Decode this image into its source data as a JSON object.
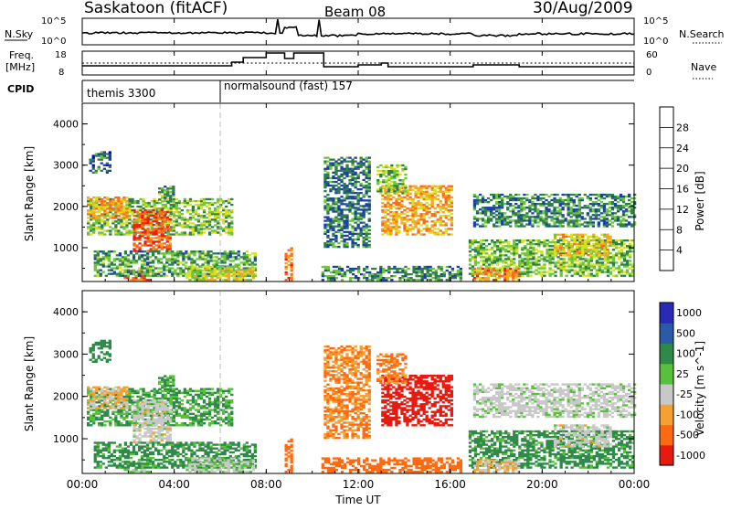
{
  "header": {
    "station": "Saskatoon (fitACF)",
    "beam": "Beam 08",
    "date": "30/Aug/2009"
  },
  "strips": {
    "nsky_label": "N.Sky",
    "nsky_ticks": [
      "10^5",
      "10^0"
    ],
    "nsearch_label": "N.Search",
    "freq_label_1": "Freq.",
    "freq_label_2": "[MHz]",
    "freq_ticks": [
      "18",
      "8"
    ],
    "nave_ticks": [
      "60",
      "0"
    ],
    "nave_label": "Nave",
    "cpid_label": "CPID",
    "cpid_segments": [
      "themis 3300",
      "normalsound (fast) 157"
    ]
  },
  "axes": {
    "time_ticks": [
      "00:00",
      "04:00",
      "08:00",
      "12:00",
      "16:00",
      "20:00",
      "00:00"
    ],
    "time_label": "Time UT",
    "range_label": "Slant Range [km]",
    "range_ticks": [
      "1000",
      "2000",
      "3000",
      "4000"
    ]
  },
  "power_scale": {
    "label": "Power [dB]",
    "ticks": [
      "28",
      "24",
      "20",
      "16",
      "12",
      "8",
      "4"
    ],
    "colors": [
      "#0000ff",
      "#1d3fa8",
      "#2f7d4a",
      "#6cc53a",
      "#d8e020",
      "#f5a623",
      "#ff6a1a",
      "#e8200f"
    ]
  },
  "velocity_scale": {
    "label": "Velocity [m s^-1]",
    "ticks": [
      "1000",
      "500",
      "100",
      "25",
      "-25",
      "-100",
      "-500",
      "-1000"
    ],
    "colors": [
      "#2a2ab8",
      "#2a5aa8",
      "#2f8a4a",
      "#58c03a",
      "#c8c8c8",
      "#f5a030",
      "#ff6a10",
      "#e81a10"
    ]
  },
  "chart_data": {
    "type": "heatmap",
    "panels": [
      {
        "name": "Power",
        "quantity": "Power [dB]",
        "zlim": [
          0,
          30
        ]
      },
      {
        "name": "Velocity",
        "quantity": "Velocity [m s^-1]",
        "zlim": [
          -1000,
          1000
        ]
      }
    ],
    "xlabel": "Time UT",
    "xlim": [
      "00:00",
      "24:00"
    ],
    "ylabel": "Slant Range [km]",
    "ylim": [
      180,
      4500
    ],
    "cpid": [
      {
        "start": "00:00",
        "end": "06:00",
        "label": "themis 3300"
      },
      {
        "start": "06:00",
        "end": "24:00",
        "label": "normalsound (fast) 157"
      }
    ],
    "echo_regions": [
      {
        "t0": 0.2,
        "t1": 6.5,
        "r0": 1300,
        "r1": 2200,
        "power": 14,
        "velocity": 60
      },
      {
        "t0": 2.2,
        "t1": 3.8,
        "r0": 900,
        "r1": 1900,
        "power": 27,
        "velocity": 0
      },
      {
        "t0": 0.2,
        "t1": 2.0,
        "r0": 1700,
        "r1": 2200,
        "power": 23,
        "velocity": -30
      },
      {
        "t0": 1.8,
        "t1": 3.0,
        "r0": 200,
        "r1": 450,
        "power": 26,
        "velocity": 30
      },
      {
        "t0": 0.5,
        "t1": 7.5,
        "r0": 300,
        "r1": 900,
        "power": 12,
        "velocity": 80
      },
      {
        "t0": 4.5,
        "t1": 7.5,
        "r0": 200,
        "r1": 550,
        "power": 18,
        "velocity": 20
      },
      {
        "t0": 0.3,
        "t1": 1.2,
        "r0": 2800,
        "r1": 3300,
        "power": 8,
        "velocity": 200
      },
      {
        "t0": 3.3,
        "t1": 4.0,
        "r0": 2100,
        "r1": 2500,
        "power": 12,
        "velocity": 60
      },
      {
        "t0": 8.8,
        "t1": 9.1,
        "r0": 200,
        "r1": 1000,
        "power": 26,
        "velocity": -200
      },
      {
        "t0": 10.4,
        "t1": 16.5,
        "r0": 200,
        "r1": 550,
        "power": 11,
        "velocity": -120
      },
      {
        "t0": 13.0,
        "t1": 16.0,
        "r0": 1300,
        "r1": 2500,
        "power": 22,
        "velocity": -550
      },
      {
        "t0": 12.8,
        "t1": 14.0,
        "r0": 2300,
        "r1": 3000,
        "power": 14,
        "velocity": -70
      },
      {
        "t0": 10.5,
        "t1": 12.5,
        "r0": 1000,
        "r1": 3200,
        "power": 9,
        "velocity": -60
      },
      {
        "t0": 16.8,
        "t1": 23.9,
        "r0": 300,
        "r1": 1200,
        "power": 14,
        "velocity": 80
      },
      {
        "t0": 17.0,
        "t1": 19.0,
        "r0": 200,
        "r1": 500,
        "power": 24,
        "velocity": -20
      },
      {
        "t0": 17.0,
        "t1": 24.0,
        "r0": 1500,
        "r1": 2300,
        "power": 10,
        "velocity": 10
      },
      {
        "t0": 20.5,
        "t1": 23.0,
        "r0": 800,
        "r1": 1300,
        "power": 20,
        "velocity": 0
      }
    ]
  }
}
